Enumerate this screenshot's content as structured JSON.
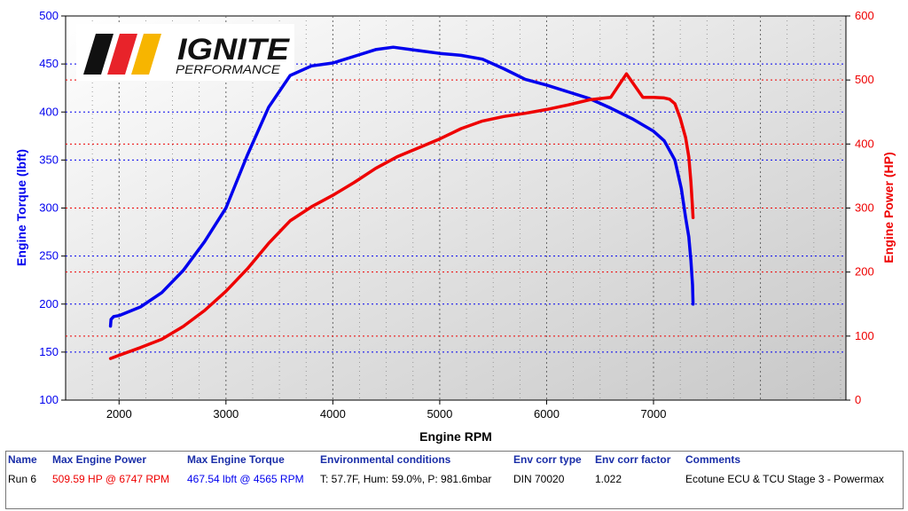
{
  "logo": {
    "brand": "IGNITE",
    "sub": "PERFORMANCE",
    "stripe_colors": [
      "#111111",
      "#e8232a",
      "#f7b500"
    ]
  },
  "colors": {
    "torque": "#0000ee",
    "power": "#ee0000"
  },
  "chart_data": {
    "type": "line",
    "xlabel": "Engine RPM",
    "ylabel_left": "Engine Torque (lbft)",
    "ylabel_right": "Engine Power (HP)",
    "xlim": [
      1500,
      8800
    ],
    "ylim_left": [
      100,
      500
    ],
    "ylim_right": [
      0,
      600
    ],
    "x_ticks": [
      2000,
      3000,
      4000,
      5000,
      6000,
      7000
    ],
    "y_ticks_left": [
      100,
      150,
      200,
      250,
      300,
      350,
      400,
      450,
      500
    ],
    "y_ticks_right": [
      0,
      100,
      200,
      300,
      400,
      500,
      600
    ],
    "grid": true,
    "series": [
      {
        "name": "Engine Torque",
        "axis": "left",
        "x": [
          1920,
          1925,
          1950,
          2000,
          2200,
          2400,
          2600,
          2800,
          3000,
          3200,
          3400,
          3600,
          3800,
          4000,
          4200,
          4400,
          4565,
          4800,
          5000,
          5200,
          5400,
          5600,
          5800,
          6000,
          6200,
          6400,
          6600,
          6800,
          7000,
          7100,
          7200,
          7260,
          7300,
          7330,
          7350,
          7365,
          7370
        ],
        "y": [
          177,
          184,
          187,
          188,
          197,
          212,
          235,
          265,
          300,
          355,
          405,
          438,
          448,
          451,
          458,
          465,
          467.5,
          464,
          461,
          459,
          455,
          445,
          434,
          428,
          421,
          414,
          404,
          393,
          380,
          370,
          350,
          320,
          290,
          270,
          245,
          220,
          200
        ]
      },
      {
        "name": "Engine Power",
        "axis": "right",
        "x": [
          1920,
          2000,
          2200,
          2400,
          2600,
          2800,
          3000,
          3200,
          3400,
          3600,
          3800,
          4000,
          4200,
          4400,
          4600,
          4800,
          5000,
          5200,
          5400,
          5600,
          5800,
          6000,
          6200,
          6400,
          6600,
          6747,
          6900,
          7000,
          7100,
          7150,
          7200,
          7250,
          7300,
          7330,
          7350,
          7365,
          7370
        ],
        "y": [
          65,
          70,
          82,
          95,
          115,
          140,
          170,
          205,
          245,
          280,
          302,
          320,
          340,
          362,
          380,
          394,
          408,
          424,
          436,
          443,
          448,
          454,
          461,
          469,
          473,
          509.59,
          473,
          473,
          472,
          470,
          463,
          440,
          410,
          380,
          340,
          300,
          285
        ]
      }
    ]
  },
  "table": {
    "headers": [
      "Name",
      "Max Engine Power",
      "Max Engine Torque",
      "Environmental conditions",
      "Env corr type",
      "Env corr factor",
      "Comments"
    ],
    "row": {
      "name": "Run 6",
      "max_power": "509.59 HP @ 6747 RPM",
      "max_torque": "467.54 lbft @ 4565 RPM",
      "env_conditions": "T: 57.7F, Hum: 59.0%, P: 981.6mbar",
      "env_corr_type": "DIN 70020",
      "env_corr_factor": "1.022",
      "comments": "Ecotune ECU & TCU Stage 3 - Powermax"
    }
  }
}
